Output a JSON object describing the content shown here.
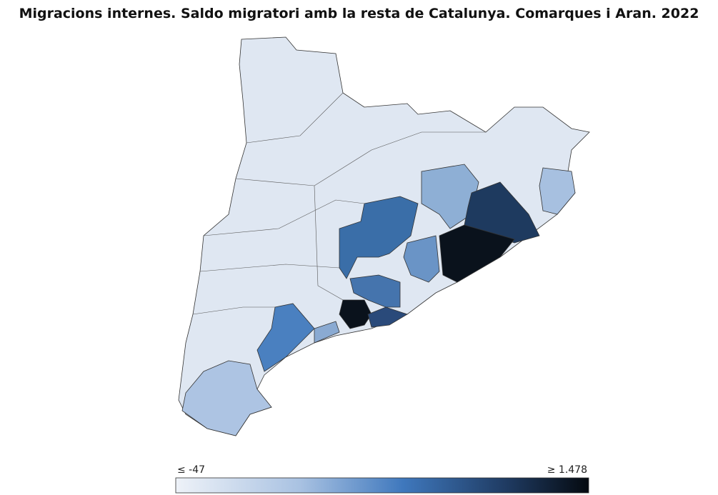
{
  "title": "Migracions internes. Saldo migratori amb la resta de Catalunya. Comarques i Aran. 2022",
  "legend": {
    "min_label": "≤ -47",
    "max_label": "≥ 1.478"
  }
}
